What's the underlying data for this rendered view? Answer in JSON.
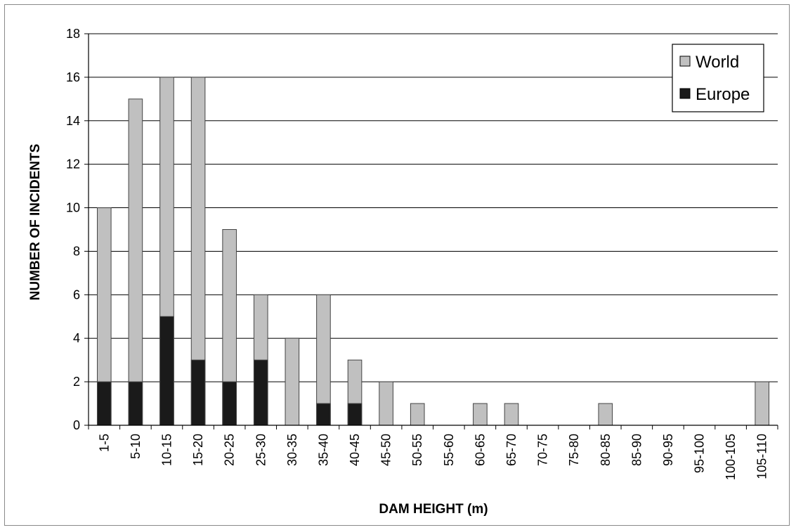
{
  "chart_data": {
    "type": "bar",
    "stacked": false,
    "overlay": true,
    "categories": [
      "1-5",
      "5-10",
      "10-15",
      "15-20",
      "20-25",
      "25-30",
      "30-35",
      "35-40",
      "40-45",
      "45-50",
      "50-55",
      "55-60",
      "60-65",
      "65-70",
      "70-75",
      "75-80",
      "80-85",
      "85-90",
      "90-95",
      "95-100",
      "100-105",
      "105-110"
    ],
    "series": [
      {
        "name": "World",
        "color": "#c0c0c0",
        "values": [
          10,
          15,
          16,
          16,
          9,
          6,
          4,
          6,
          3,
          2,
          1,
          0,
          1,
          1,
          0,
          0,
          1,
          0,
          0,
          0,
          0,
          2
        ]
      },
      {
        "name": "Europe",
        "color": "#1a1a1a",
        "values": [
          2,
          2,
          5,
          3,
          2,
          3,
          0,
          1,
          1,
          0,
          0,
          0,
          0,
          0,
          0,
          0,
          0,
          0,
          0,
          0,
          0,
          0
        ]
      }
    ],
    "title": "",
    "xlabel": "DAM HEIGHT (m)",
    "ylabel": "NUMBER OF INCIDENTS",
    "ylim": [
      0,
      18
    ],
    "yticks": [
      0,
      2,
      4,
      6,
      8,
      10,
      12,
      14,
      16,
      18
    ],
    "grid": true,
    "legend_position": "top-right"
  }
}
